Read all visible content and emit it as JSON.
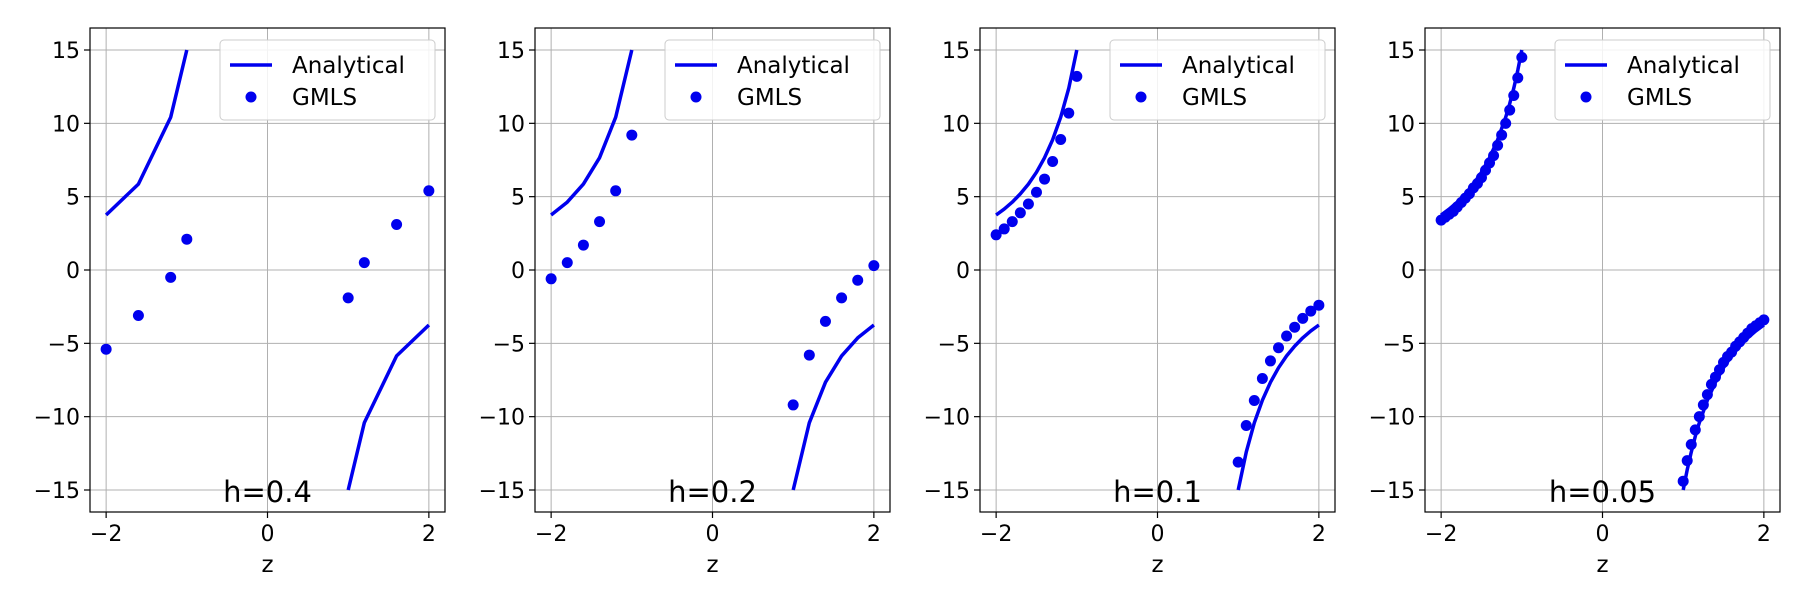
{
  "colors": {
    "series": "#0000ee",
    "grid": "#b0b0b0",
    "frame": "#000000"
  },
  "chart_data": [
    {
      "type": "line",
      "xlabel": "z",
      "annotation": "h=0.4",
      "xlim": [
        -2.2,
        2.2
      ],
      "ylim": [
        -16.5,
        16.5
      ],
      "xticks": [
        -2,
        0,
        2
      ],
      "yticks": [
        15,
        10,
        5,
        0,
        -5,
        -10,
        -15
      ],
      "grid": true,
      "legend": {
        "position": "top-right",
        "entries": [
          "Analytical",
          "GMLS"
        ]
      },
      "series": [
        {
          "name": "Analytical",
          "kind": "line",
          "segments": [
            [
              [
                -2.0,
                3.75
              ],
              [
                -1.6,
                5.86
              ],
              [
                -1.2,
                10.42
              ],
              [
                -1.0,
                15.0
              ]
            ],
            [
              [
                1.0,
                -15.0
              ],
              [
                1.2,
                -10.42
              ],
              [
                1.6,
                -5.86
              ],
              [
                2.0,
                -3.75
              ]
            ]
          ]
        },
        {
          "name": "GMLS",
          "kind": "scatter",
          "points": [
            [
              -2.0,
              -5.4
            ],
            [
              -1.6,
              -3.1
            ],
            [
              -1.2,
              -0.5
            ],
            [
              -1.0,
              2.1
            ],
            [
              1.0,
              -1.9
            ],
            [
              1.2,
              0.5
            ],
            [
              1.6,
              3.1
            ],
            [
              2.0,
              5.4
            ]
          ]
        }
      ]
    },
    {
      "type": "line",
      "xlabel": "z",
      "annotation": "h=0.2",
      "xlim": [
        -2.2,
        2.2
      ],
      "ylim": [
        -16.5,
        16.5
      ],
      "xticks": [
        -2,
        0,
        2
      ],
      "yticks": [
        15,
        10,
        5,
        0,
        -5,
        -10,
        -15
      ],
      "grid": true,
      "legend": {
        "position": "top-right",
        "entries": [
          "Analytical",
          "GMLS"
        ]
      },
      "series": [
        {
          "name": "Analytical",
          "kind": "line",
          "segments": [
            [
              [
                -2.0,
                3.75
              ],
              [
                -1.8,
                4.63
              ],
              [
                -1.6,
                5.86
              ],
              [
                -1.4,
                7.65
              ],
              [
                -1.2,
                10.42
              ],
              [
                -1.0,
                15.0
              ]
            ],
            [
              [
                1.0,
                -15.0
              ],
              [
                1.2,
                -10.42
              ],
              [
                1.4,
                -7.65
              ],
              [
                1.6,
                -5.86
              ],
              [
                1.8,
                -4.63
              ],
              [
                2.0,
                -3.75
              ]
            ]
          ]
        },
        {
          "name": "GMLS",
          "kind": "scatter",
          "points": [
            [
              -2.0,
              -0.6
            ],
            [
              -1.8,
              0.5
            ],
            [
              -1.6,
              1.7
            ],
            [
              -1.4,
              3.3
            ],
            [
              -1.2,
              5.4
            ],
            [
              -1.0,
              9.2
            ],
            [
              1.0,
              -9.2
            ],
            [
              1.2,
              -5.8
            ],
            [
              1.4,
              -3.5
            ],
            [
              1.6,
              -1.9
            ],
            [
              1.8,
              -0.7
            ],
            [
              2.0,
              0.3
            ]
          ]
        }
      ]
    },
    {
      "type": "line",
      "xlabel": "z",
      "annotation": "h=0.1",
      "xlim": [
        -2.2,
        2.2
      ],
      "ylim": [
        -16.5,
        16.5
      ],
      "xticks": [
        -2,
        0,
        2
      ],
      "yticks": [
        15,
        10,
        5,
        0,
        -5,
        -10,
        -15
      ],
      "grid": true,
      "legend": {
        "position": "top-right",
        "entries": [
          "Analytical",
          "GMLS"
        ]
      },
      "series": [
        {
          "name": "Analytical",
          "kind": "line",
          "segments": [
            [
              [
                -2.0,
                3.75
              ],
              [
                -1.9,
                4.15
              ],
              [
                -1.8,
                4.63
              ],
              [
                -1.7,
                5.19
              ],
              [
                -1.6,
                5.86
              ],
              [
                -1.5,
                6.67
              ],
              [
                -1.4,
                7.65
              ],
              [
                -1.3,
                8.88
              ],
              [
                -1.2,
                10.42
              ],
              [
                -1.1,
                12.4
              ],
              [
                -1.0,
                15.0
              ]
            ],
            [
              [
                1.0,
                -15.0
              ],
              [
                1.1,
                -12.4
              ],
              [
                1.2,
                -10.42
              ],
              [
                1.3,
                -8.88
              ],
              [
                1.4,
                -7.65
              ],
              [
                1.5,
                -6.67
              ],
              [
                1.6,
                -5.86
              ],
              [
                1.7,
                -5.19
              ],
              [
                1.8,
                -4.63
              ],
              [
                1.9,
                -4.15
              ],
              [
                2.0,
                -3.75
              ]
            ]
          ]
        },
        {
          "name": "GMLS",
          "kind": "scatter",
          "points": [
            [
              -2.0,
              2.4
            ],
            [
              -1.9,
              2.8
            ],
            [
              -1.8,
              3.3
            ],
            [
              -1.7,
              3.9
            ],
            [
              -1.6,
              4.5
            ],
            [
              -1.5,
              5.3
            ],
            [
              -1.4,
              6.2
            ],
            [
              -1.3,
              7.4
            ],
            [
              -1.2,
              8.9
            ],
            [
              -1.1,
              10.7
            ],
            [
              -1.0,
              13.2
            ],
            [
              1.0,
              -13.1
            ],
            [
              1.1,
              -10.6
            ],
            [
              1.2,
              -8.9
            ],
            [
              1.3,
              -7.4
            ],
            [
              1.4,
              -6.2
            ],
            [
              1.5,
              -5.3
            ],
            [
              1.6,
              -4.5
            ],
            [
              1.7,
              -3.9
            ],
            [
              1.8,
              -3.3
            ],
            [
              1.9,
              -2.8
            ],
            [
              2.0,
              -2.4
            ]
          ]
        }
      ]
    },
    {
      "type": "line",
      "xlabel": "z",
      "annotation": "h=0.05",
      "xlim": [
        -2.2,
        2.2
      ],
      "ylim": [
        -16.5,
        16.5
      ],
      "xticks": [
        -2,
        0,
        2
      ],
      "yticks": [
        15,
        10,
        5,
        0,
        -5,
        -10,
        -15
      ],
      "grid": true,
      "legend": {
        "position": "top-right",
        "entries": [
          "Analytical",
          "GMLS"
        ]
      },
      "series": [
        {
          "name": "Analytical",
          "kind": "line",
          "segments": [
            [
              [
                -2.0,
                3.75
              ],
              [
                -1.9,
                4.15
              ],
              [
                -1.8,
                4.63
              ],
              [
                -1.7,
                5.19
              ],
              [
                -1.6,
                5.86
              ],
              [
                -1.5,
                6.67
              ],
              [
                -1.4,
                7.65
              ],
              [
                -1.3,
                8.88
              ],
              [
                -1.2,
                10.42
              ],
              [
                -1.15,
                11.34
              ],
              [
                -1.1,
                12.4
              ],
              [
                -1.05,
                13.62
              ],
              [
                -1.0,
                15.0
              ]
            ],
            [
              [
                1.0,
                -15.0
              ],
              [
                1.05,
                -13.62
              ],
              [
                1.1,
                -12.4
              ],
              [
                1.15,
                -11.34
              ],
              [
                1.2,
                -10.42
              ],
              [
                1.3,
                -8.88
              ],
              [
                1.4,
                -7.65
              ],
              [
                1.5,
                -6.67
              ],
              [
                1.6,
                -5.86
              ],
              [
                1.7,
                -5.19
              ],
              [
                1.8,
                -4.63
              ],
              [
                1.9,
                -4.15
              ],
              [
                2.0,
                -3.75
              ]
            ]
          ]
        },
        {
          "name": "GMLS",
          "kind": "scatter",
          "points": [
            [
              -2.0,
              3.4
            ],
            [
              -1.95,
              3.6
            ],
            [
              -1.9,
              3.8
            ],
            [
              -1.85,
              4.0
            ],
            [
              -1.8,
              4.3
            ],
            [
              -1.75,
              4.6
            ],
            [
              -1.7,
              4.9
            ],
            [
              -1.65,
              5.2
            ],
            [
              -1.6,
              5.6
            ],
            [
              -1.55,
              5.9
            ],
            [
              -1.5,
              6.3
            ],
            [
              -1.45,
              6.8
            ],
            [
              -1.4,
              7.3
            ],
            [
              -1.35,
              7.8
            ],
            [
              -1.3,
              8.5
            ],
            [
              -1.25,
              9.2
            ],
            [
              -1.2,
              10.0
            ],
            [
              -1.15,
              10.9
            ],
            [
              -1.1,
              11.9
            ],
            [
              -1.05,
              13.1
            ],
            [
              -1.0,
              14.5
            ],
            [
              1.0,
              -14.4
            ],
            [
              1.05,
              -13.0
            ],
            [
              1.1,
              -11.9
            ],
            [
              1.15,
              -10.9
            ],
            [
              1.2,
              -10.0
            ],
            [
              1.25,
              -9.2
            ],
            [
              1.3,
              -8.5
            ],
            [
              1.35,
              -7.8
            ],
            [
              1.4,
              -7.3
            ],
            [
              1.45,
              -6.8
            ],
            [
              1.5,
              -6.3
            ],
            [
              1.55,
              -5.9
            ],
            [
              1.6,
              -5.6
            ],
            [
              1.65,
              -5.2
            ],
            [
              1.7,
              -4.9
            ],
            [
              1.75,
              -4.6
            ],
            [
              1.8,
              -4.3
            ],
            [
              1.85,
              -4.0
            ],
            [
              1.9,
              -3.8
            ],
            [
              1.95,
              -3.6
            ],
            [
              2.0,
              -3.4
            ]
          ]
        }
      ]
    }
  ]
}
